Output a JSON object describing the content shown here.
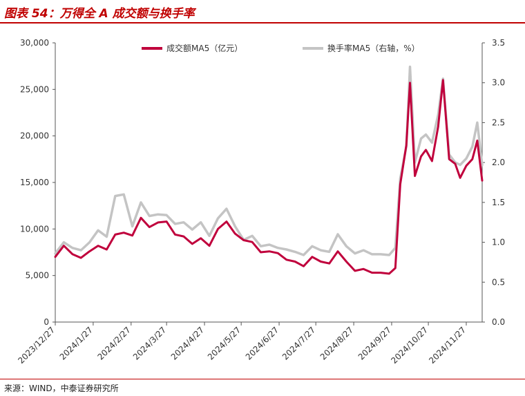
{
  "header": {
    "title": "图表 54：万得全 A 成交额与换手率"
  },
  "footer": {
    "source": "来源：WIND，中泰证券研究所"
  },
  "colors": {
    "accent": "#c00000",
    "series_turnover_value": "#c0003c",
    "series_turnover_rate": "#c4c4c4"
  },
  "chart_data": {
    "type": "line",
    "title": "",
    "xlabel": "",
    "ylabel": "",
    "x_tick_labels": [
      "2023/12/27",
      "2024/1/27",
      "2024/2/27",
      "2024/3/27",
      "2024/4/27",
      "2024/5/27",
      "2024/6/27",
      "2024/7/27",
      "2024/8/27",
      "2024/9/27",
      "2024/10/27",
      "2024/11/27"
    ],
    "y_left": {
      "min": 0,
      "max": 30000,
      "ticks": [
        "0",
        "5,000",
        "10,000",
        "15,000",
        "20,000",
        "25,000",
        "30,000"
      ]
    },
    "y_right": {
      "min": 0,
      "max": 3.5,
      "ticks": [
        "0.0",
        "0.5",
        "1.0",
        "1.5",
        "2.0",
        "2.5",
        "3.0",
        "3.5"
      ]
    },
    "legend_position": "top",
    "series": [
      {
        "name": "成交额MA5（亿元）",
        "axis": "left",
        "color": "#c0003c",
        "x": [
          "2023-12-27",
          "2024-01-03",
          "2024-01-10",
          "2024-01-17",
          "2024-01-24",
          "2024-01-31",
          "2024-02-07",
          "2024-02-14",
          "2024-02-21",
          "2024-02-28",
          "2024-03-06",
          "2024-03-13",
          "2024-03-20",
          "2024-03-27",
          "2024-04-03",
          "2024-04-10",
          "2024-04-17",
          "2024-04-24",
          "2024-05-01",
          "2024-05-08",
          "2024-05-15",
          "2024-05-22",
          "2024-05-29",
          "2024-06-05",
          "2024-06-12",
          "2024-06-19",
          "2024-06-26",
          "2024-07-03",
          "2024-07-10",
          "2024-07-17",
          "2024-07-24",
          "2024-07-31",
          "2024-08-07",
          "2024-08-14",
          "2024-08-21",
          "2024-08-28",
          "2024-09-04",
          "2024-09-11",
          "2024-09-18",
          "2024-09-25",
          "2024-09-30",
          "2024-10-04",
          "2024-10-09",
          "2024-10-12",
          "2024-10-16",
          "2024-10-21",
          "2024-10-25",
          "2024-10-30",
          "2024-11-04",
          "2024-11-08",
          "2024-11-13",
          "2024-11-18",
          "2024-11-22",
          "2024-11-27",
          "2024-12-02",
          "2024-12-06",
          "2024-12-10"
        ],
        "values": [
          7000,
          8200,
          7300,
          6900,
          7600,
          8200,
          7800,
          9400,
          9600,
          9300,
          11200,
          10200,
          10700,
          10800,
          9400,
          9200,
          8400,
          9000,
          8200,
          10000,
          10800,
          9500,
          8800,
          8600,
          7500,
          7600,
          7400,
          6700,
          6500,
          6000,
          7000,
          6500,
          6300,
          7600,
          6500,
          5500,
          5700,
          5300,
          5300,
          5200,
          5800,
          14800,
          19000,
          25700,
          15700,
          17800,
          18500,
          17300,
          21000,
          26000,
          17500,
          17000,
          15500,
          16800,
          17500,
          19500,
          15200
        ]
      },
      {
        "name": "换手率MA5（右轴，%）",
        "axis": "right",
        "color": "#c4c4c4",
        "x": [
          "2023-12-27",
          "2024-01-03",
          "2024-01-10",
          "2024-01-17",
          "2024-01-24",
          "2024-01-31",
          "2024-02-07",
          "2024-02-14",
          "2024-02-21",
          "2024-02-28",
          "2024-03-06",
          "2024-03-13",
          "2024-03-20",
          "2024-03-27",
          "2024-04-03",
          "2024-04-10",
          "2024-04-17",
          "2024-04-24",
          "2024-05-01",
          "2024-05-08",
          "2024-05-15",
          "2024-05-22",
          "2024-05-29",
          "2024-06-05",
          "2024-06-12",
          "2024-06-19",
          "2024-06-26",
          "2024-07-03",
          "2024-07-10",
          "2024-07-17",
          "2024-07-24",
          "2024-07-31",
          "2024-08-07",
          "2024-08-14",
          "2024-08-21",
          "2024-08-28",
          "2024-09-04",
          "2024-09-11",
          "2024-09-18",
          "2024-09-25",
          "2024-09-30",
          "2024-10-04",
          "2024-10-09",
          "2024-10-12",
          "2024-10-16",
          "2024-10-21",
          "2024-10-25",
          "2024-10-30",
          "2024-11-04",
          "2024-11-08",
          "2024-11-13",
          "2024-11-18",
          "2024-11-22",
          "2024-11-27",
          "2024-12-02",
          "2024-12-06",
          "2024-12-10"
        ],
        "values": [
          0.86,
          1.0,
          0.93,
          0.9,
          1.0,
          1.15,
          1.07,
          1.58,
          1.6,
          1.2,
          1.5,
          1.33,
          1.35,
          1.34,
          1.23,
          1.25,
          1.16,
          1.25,
          1.08,
          1.3,
          1.42,
          1.2,
          1.03,
          1.08,
          0.95,
          0.97,
          0.93,
          0.91,
          0.88,
          0.84,
          0.95,
          0.9,
          0.88,
          1.1,
          0.95,
          0.86,
          0.9,
          0.85,
          0.85,
          0.84,
          0.93,
          1.8,
          2.2,
          3.2,
          2.0,
          2.3,
          2.35,
          2.25,
          2.6,
          3.05,
          2.1,
          2.0,
          1.97,
          2.05,
          2.2,
          2.5,
          1.97
        ]
      }
    ]
  }
}
